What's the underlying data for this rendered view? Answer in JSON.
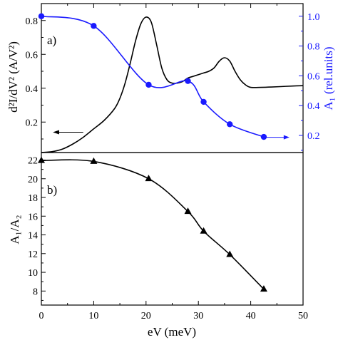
{
  "chart_data": [
    {
      "panel": "a)",
      "type": "line",
      "xlim": [
        0,
        50
      ],
      "ylim": [
        0.02,
        0.9
      ],
      "ylim_right": [
        0.085,
        1.085
      ],
      "yticks_left": [
        "0.2",
        "0.4",
        "0.6",
        "0.8"
      ],
      "yticks_right": [
        "0.2",
        "0.4",
        "0.6",
        "0.8",
        "1.0"
      ],
      "ylabel_left": "d²I/dV² (A/V²)",
      "ylabel_right": "A₁ (rel.units)",
      "series": [
        {
          "axis": "left",
          "color": "#000000",
          "marker": "none",
          "x": [
            0,
            2,
            4,
            6,
            8,
            10,
            12,
            14,
            15,
            16,
            17,
            18,
            19,
            20,
            21,
            22,
            23,
            24,
            25,
            26,
            27,
            28,
            29,
            30,
            31,
            32,
            33,
            34,
            35,
            36,
            37,
            38,
            39,
            40,
            42,
            44,
            46,
            48,
            50
          ],
          "y": [
            0.02,
            0.025,
            0.04,
            0.07,
            0.11,
            0.16,
            0.21,
            0.28,
            0.34,
            0.43,
            0.55,
            0.68,
            0.78,
            0.82,
            0.79,
            0.66,
            0.52,
            0.45,
            0.43,
            0.43,
            0.44,
            0.46,
            0.47,
            0.48,
            0.49,
            0.5,
            0.52,
            0.56,
            0.58,
            0.56,
            0.5,
            0.45,
            0.42,
            0.405,
            0.405,
            0.407,
            0.41,
            0.413,
            0.415
          ]
        },
        {
          "axis": "right",
          "color": "#1a1aff",
          "marker": "circle",
          "x": [
            0,
            10,
            20.5,
            28,
            31,
            36,
            42.5
          ],
          "y": [
            1.0,
            0.935,
            0.54,
            0.565,
            0.425,
            0.275,
            0.19
          ]
        }
      ],
      "arrows": [
        {
          "direction": "left",
          "color": "#000000",
          "target_axis": "left"
        },
        {
          "direction": "right",
          "color": "#1a1aff",
          "target_axis": "right"
        }
      ]
    },
    {
      "panel": "b)",
      "type": "line",
      "xlim": [
        0,
        50
      ],
      "ylim": [
        6.5,
        22.8
      ],
      "xticks": [
        "0",
        "10",
        "20",
        "30",
        "40",
        "50"
      ],
      "yticks": [
        "8",
        "10",
        "12",
        "14",
        "16",
        "18",
        "20",
        "22"
      ],
      "xlabel": "eV (meV)",
      "ylabel": "A₁/A₂",
      "series": [
        {
          "color": "#000000",
          "marker": "triangle",
          "x": [
            0,
            10,
            20.5,
            28,
            31,
            36,
            42.5
          ],
          "y": [
            21.95,
            21.85,
            20.0,
            16.5,
            14.4,
            11.9,
            8.2
          ]
        }
      ]
    }
  ]
}
